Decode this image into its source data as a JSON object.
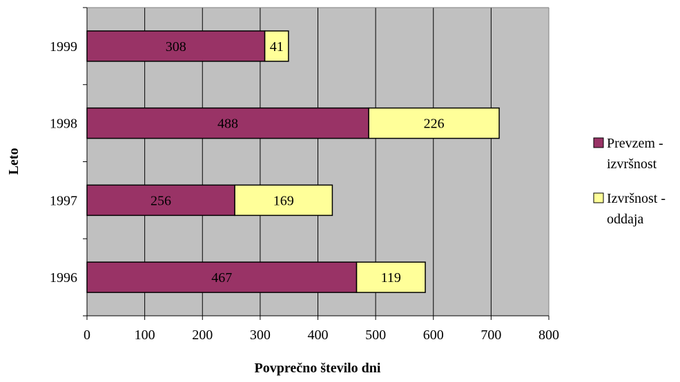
{
  "chart_data": {
    "type": "bar",
    "orientation": "horizontal",
    "stacked": true,
    "categories": [
      "1996",
      "1997",
      "1998",
      "1999"
    ],
    "series": [
      {
        "name": "Prevzem - izvršnost",
        "values": [
          467,
          256,
          488,
          308
        ],
        "color": "#993366"
      },
      {
        "name": "Izvršnost - oddaja",
        "values": [
          119,
          169,
          226,
          41
        ],
        "color": "#FFFF99"
      }
    ],
    "xlabel": "Povprečno število dni",
    "ylabel": "Leto",
    "xlim": [
      0,
      800
    ],
    "x_ticks": [
      "0",
      "100",
      "200",
      "300",
      "400",
      "500",
      "600",
      "700",
      "800"
    ],
    "data_labels": [
      [
        "467",
        "256",
        "488",
        "308"
      ],
      [
        "119",
        "169",
        "226",
        "41"
      ]
    ],
    "grid": "vertical",
    "plot_background": "#C0C0C0",
    "legend_position": "right",
    "legend": [
      {
        "line1": "Prevzem -",
        "line2": "izvršnost"
      },
      {
        "line1": "Izvršnost -",
        "line2": "oddaja"
      }
    ]
  }
}
